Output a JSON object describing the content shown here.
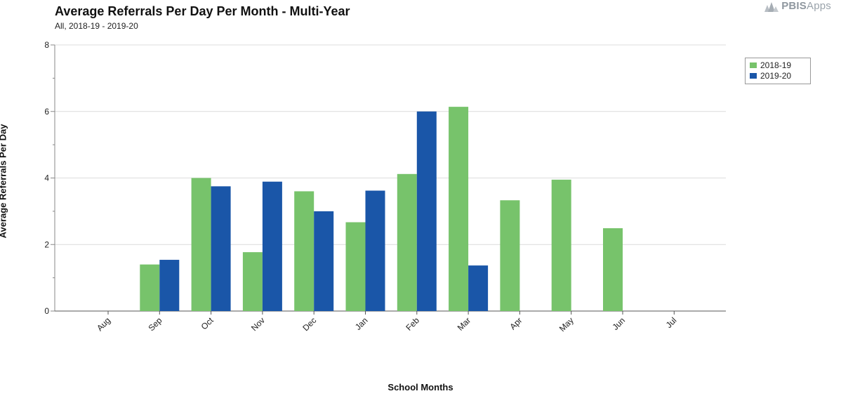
{
  "chart_data": {
    "type": "bar",
    "title": "Average Referrals Per Day Per Month - Multi-Year",
    "subtitle": "All, 2018-19 - 2019-20",
    "xlabel": "School Months",
    "ylabel": "Average Referrals Per Day",
    "categories": [
      "Aug",
      "Sep",
      "Oct",
      "Nov",
      "Dec",
      "Jan",
      "Feb",
      "Mar",
      "Apr",
      "May",
      "Jun",
      "Jul"
    ],
    "y_ticks": [
      "0",
      "2",
      "4",
      "6",
      "8"
    ],
    "ylim": [
      0,
      8
    ],
    "grid": true,
    "legend_position": "top-right",
    "series": [
      {
        "name": "2018-19",
        "color": "#77c36b",
        "values": [
          0,
          1.4,
          4.0,
          1.77,
          3.6,
          2.67,
          4.12,
          6.14,
          3.33,
          3.95,
          2.49,
          0
        ]
      },
      {
        "name": "2019-20",
        "color": "#1a56a8",
        "values": [
          0,
          1.54,
          3.75,
          3.89,
          3.0,
          3.62,
          6.0,
          1.37,
          null,
          null,
          null,
          null
        ]
      }
    ]
  },
  "logo": {
    "text_bold": "PBIS",
    "text_light": "Apps"
  }
}
